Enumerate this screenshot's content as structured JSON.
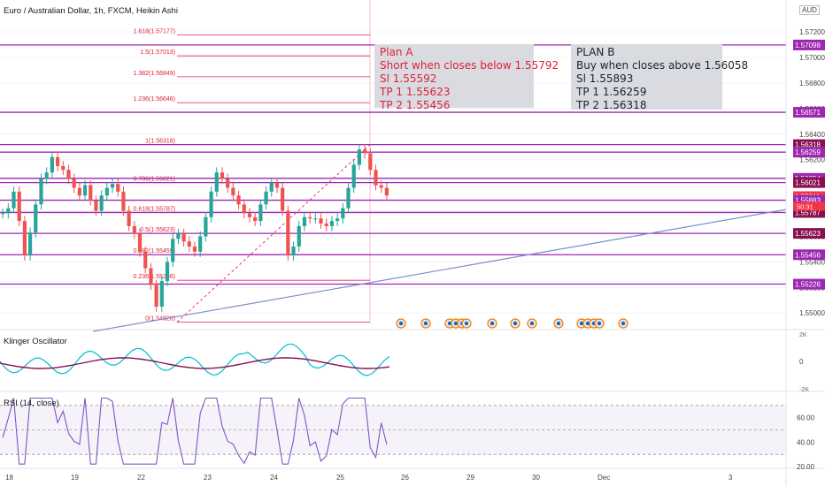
{
  "header": {
    "symbol_title": "Euro / Australian Dollar, 1h, FXCM, Heikin Ashi",
    "currency": "AUD"
  },
  "plan_a": {
    "lines": [
      "Plan A",
      "Short when closes below 1.55792",
      "Sl 1.55592",
      "TP 1 1.55623",
      "TP 2 1.55456"
    ]
  },
  "plan_b": {
    "lines": [
      "PLAN B",
      "Buy when closes above 1.56058",
      "Sl 1.55893",
      "TP 1 1.56259",
      "TP 2 1.56318"
    ]
  },
  "indicators": {
    "klinger": "Klinger Oscillator",
    "rsi": "RSI (14, close)"
  },
  "chart_data": {
    "type": "candlestick",
    "style": "Heikin Ashi",
    "ylim": [
      1.5487,
      1.5745
    ],
    "price_ticks": [
      1.572,
      1.57,
      1.568,
      1.566,
      1.564,
      1.562,
      1.56,
      1.558,
      1.556,
      1.554,
      1.552,
      1.55
    ],
    "x_ticks": [
      "18",
      "19",
      "22",
      "23",
      "24",
      "25",
      "26",
      "29",
      "30",
      "Dec",
      "3"
    ],
    "candle_close_path": [
      1.5578,
      1.5582,
      1.5595,
      1.5572,
      1.5545,
      1.5563,
      1.5585,
      1.5605,
      1.561,
      1.5622,
      1.5615,
      1.5612,
      1.5605,
      1.5598,
      1.5592,
      1.56,
      1.5588,
      1.558,
      1.5592,
      1.5598,
      1.5601,
      1.5595,
      1.558,
      1.5568,
      1.5562,
      1.5548,
      1.5535,
      1.5522,
      1.5505,
      1.5525,
      1.554,
      1.5558,
      1.5562,
      1.5556,
      1.5552,
      1.5548,
      1.556,
      1.5575,
      1.5595,
      1.561,
      1.5605,
      1.5598,
      1.5592,
      1.5585,
      1.5578,
      1.5575,
      1.5572,
      1.5585,
      1.5595,
      1.5602,
      1.5598,
      1.558,
      1.5545,
      1.5552,
      1.5568,
      1.5575,
      1.5574,
      1.5574,
      1.557,
      1.5568,
      1.5572,
      1.5574,
      1.5582,
      1.5598,
      1.5616,
      1.5628,
      1.5625,
      1.5612,
      1.56,
      1.5598,
      1.5592
    ],
    "fib_levels": [
      {
        "label": "1.618(1.57177)",
        "value": 1.57177
      },
      {
        "label": "1.5(1.57013)",
        "value": 1.57013
      },
      {
        "label": "1.382(1.56849)",
        "value": 1.56849
      },
      {
        "label": "1.236(1.56646)",
        "value": 1.56646
      },
      {
        "label": "1(1.56318)",
        "value": 1.56318
      },
      {
        "label": "0.786(1.56021)",
        "value": 1.56021
      },
      {
        "label": "0.618(1.55787)",
        "value": 1.55787
      },
      {
        "label": "0.5(1.55623)",
        "value": 1.55623
      },
      {
        "label": "0.382(1.55459)",
        "value": 1.55459
      },
      {
        "label": "0.236(1.55256)",
        "value": 1.55256
      },
      {
        "label": "0(1.54928)",
        "value": 1.54928
      }
    ],
    "horizontal_levels": [
      1.57098,
      1.56571,
      1.56318,
      1.56259,
      1.56054,
      1.56021,
      1.55883,
      1.55787,
      1.55623,
      1.55456,
      1.55226
    ],
    "price_labels": [
      {
        "text": "1.57098",
        "value": 1.57098,
        "color": "#9c27b0"
      },
      {
        "text": "1.56571",
        "value": 1.56571,
        "color": "#9c27b0"
      },
      {
        "text": "1.56318",
        "value": 1.56318,
        "color": "#880e4f"
      },
      {
        "text": "1.56259",
        "value": 1.56259,
        "color": "#9c27b0"
      },
      {
        "text": "1.56054",
        "value": 1.56054,
        "color": "#9c27b0"
      },
      {
        "text": "1.56021",
        "value": 1.56021,
        "color": "#880e4f"
      },
      {
        "text": "1.55911",
        "value": 1.55911,
        "color": "#f23645"
      },
      {
        "text": "1.55883",
        "value": 1.55883,
        "color": "#9c27b0"
      },
      {
        "text": "1.55787",
        "value": 1.55787,
        "color": "#880e4f"
      },
      {
        "text": "1.55623",
        "value": 1.55623,
        "color": "#880e4f"
      },
      {
        "text": "1.55456",
        "value": 1.55456,
        "color": "#9c27b0"
      },
      {
        "text": "1.55226",
        "value": 1.55226,
        "color": "#9c27b0"
      }
    ],
    "countdown": "50:31",
    "klinger": {
      "zero_label": "0",
      "k_label": "2K",
      "neg_label": "-2K"
    },
    "rsi": {
      "ylim": [
        20,
        80
      ],
      "ticks": [
        60,
        40,
        20
      ],
      "band_upper": 70,
      "band_lower": 30,
      "mid": 50,
      "tick_labels": [
        "60.00",
        "40.00",
        "20.00"
      ]
    },
    "colors": {
      "up": "#26a69a",
      "down": "#ef5350",
      "level": "#9c27b0",
      "fib": "#e91e63",
      "trend": "#7b8ec8"
    }
  }
}
